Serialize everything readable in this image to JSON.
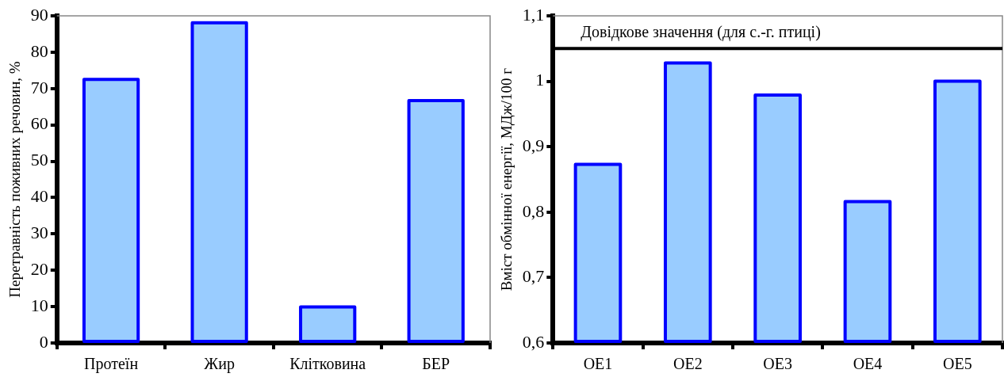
{
  "chart_data": [
    {
      "type": "bar",
      "ylabel": "Перетравність поживних речовин, %",
      "categories": [
        "Протеїн",
        "Жир",
        "Клітковина",
        "БЕР"
      ],
      "values": [
        72.5,
        88.1,
        9.9,
        66.7
      ],
      "color": "#99ccff",
      "ylim": [
        0,
        90
      ],
      "yticks": [
        0,
        10,
        20,
        30,
        40,
        50,
        60,
        70,
        80,
        90
      ],
      "grid": false,
      "legend": false
    },
    {
      "type": "bar",
      "ylabel": "Вміст обмінної енергії, МДж/100 г",
      "categories": [
        "OE1",
        "OE2",
        "OE3",
        "OE4",
        "OE5"
      ],
      "values": [
        0.873,
        1.028,
        0.979,
        0.816,
        1.0
      ],
      "color": "#99ccff",
      "ylim": [
        0.6,
        1.1
      ],
      "yticks": [
        {
          "value": 0.6,
          "label": "0,6"
        },
        {
          "value": 0.7,
          "label": "0,7"
        },
        {
          "value": 0.8,
          "label": "0,8"
        },
        {
          "value": 0.9,
          "label": "0,9"
        },
        {
          "value": 1,
          "label": "1"
        },
        {
          "value": 1.1,
          "label": "1,1"
        }
      ],
      "grid": false,
      "legend": false,
      "ref_lines": [
        {
          "axis": "y",
          "value": 1.05,
          "label": "Довідкове значення (для с.-г. птиці)",
          "color": "#000000"
        }
      ]
    }
  ]
}
